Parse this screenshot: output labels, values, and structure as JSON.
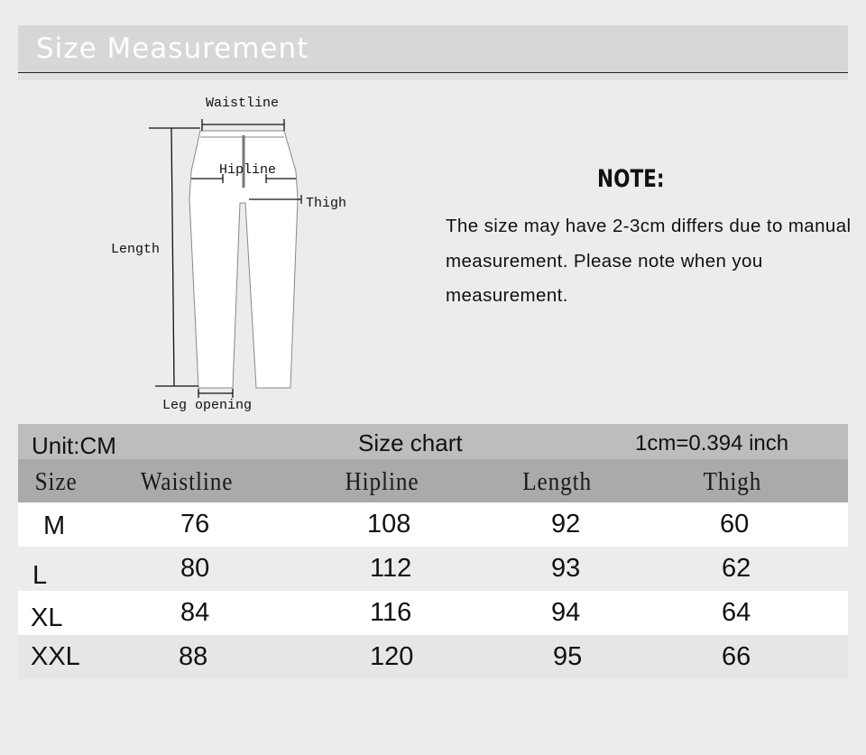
{
  "header": {
    "title": "Size Measurement"
  },
  "diagram": {
    "labels": {
      "waistline": "Waistline",
      "hipline": "Hipline",
      "thigh": "Thigh",
      "length": "Length",
      "leg_opening": "Leg opening"
    }
  },
  "note": {
    "title": "NOTE:",
    "text": "The size may have 2-3cm differs due to manual measurement. Please note when you measurement."
  },
  "size_chart": {
    "unit": "Unit:CM",
    "title": "Size chart",
    "conversion": "1cm=0.394 inch",
    "columns": [
      "Size",
      "Waistline",
      "Hipline",
      "Length",
      "Thigh"
    ],
    "rows": [
      [
        "M",
        "76",
        "108",
        "92",
        "60"
      ],
      [
        "L",
        "80",
        "112",
        "93",
        "62"
      ],
      [
        "XL",
        "84",
        "116",
        "94",
        "64"
      ],
      [
        "XXL",
        "88",
        "120",
        "95",
        "66"
      ]
    ],
    "row_colors": [
      "#ffffff",
      "#ececec",
      "#ffffff",
      "#e6e6e6"
    ]
  }
}
